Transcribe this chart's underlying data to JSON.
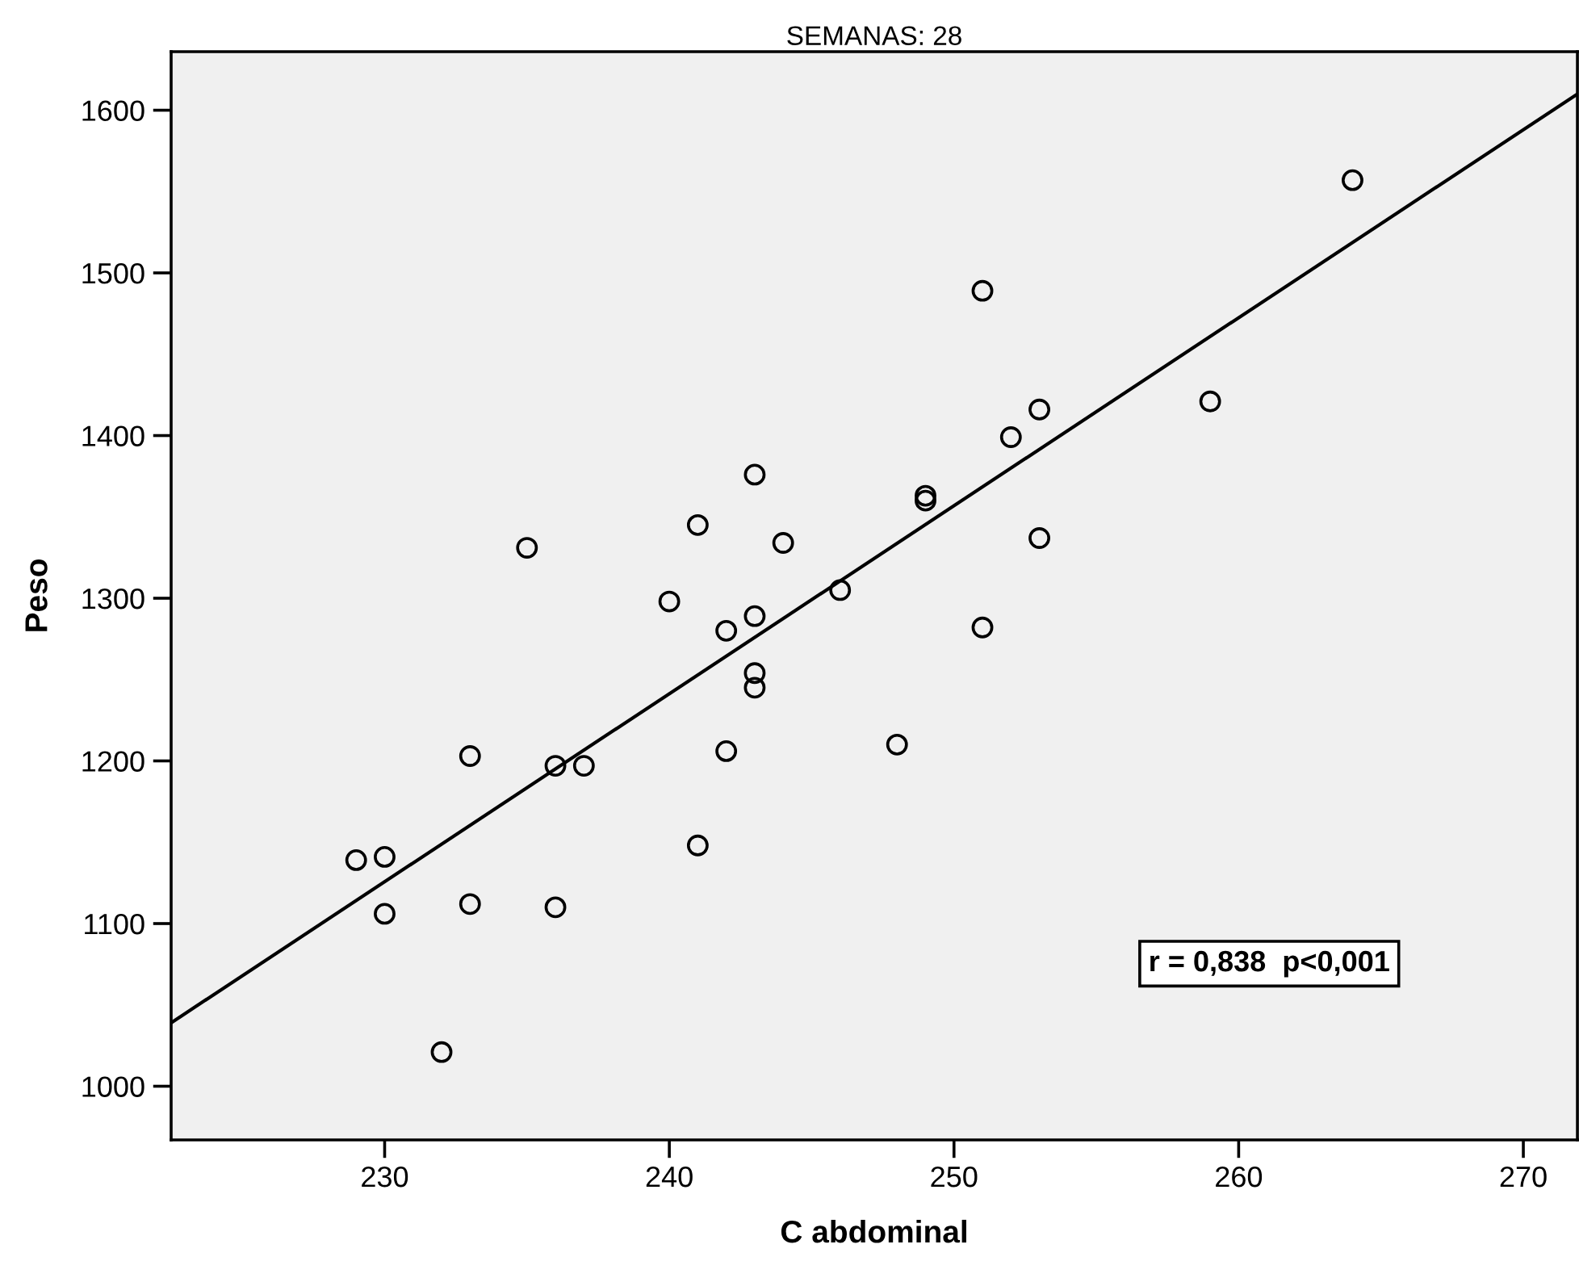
{
  "chart_data": {
    "type": "scatter",
    "title": "SEMANAS: 28",
    "xlabel": "C abdominal",
    "ylabel": "Peso",
    "x": [
      229,
      230,
      230,
      232,
      233,
      233,
      235,
      236,
      236,
      237,
      240,
      241,
      241,
      242,
      242,
      243,
      243,
      243,
      243,
      244,
      246,
      248,
      249,
      249,
      251,
      251,
      252,
      253,
      253,
      259,
      264
    ],
    "series": [
      {
        "color": "#000000",
        "marker": "circle",
        "values": [
          1139,
          1141,
          1106,
          1021,
          1203,
          1112,
          1331,
          1197,
          1110,
          1197,
          1298,
          1345,
          1148,
          1280,
          1206,
          1376,
          1289,
          1254,
          1245,
          1334,
          1305,
          1210,
          1363,
          1360,
          1489,
          1282,
          1399,
          1416,
          1337,
          1421,
          1557
        ]
      },
      {
        "type": "line",
        "color": "#000000",
        "x": [
          222.5,
          271.9
        ],
        "values": [
          1039,
          1610
        ]
      }
    ],
    "annotations": [
      "r = 0,838  p<0,001"
    ],
    "xlim": [
      222.5,
      271.9
    ],
    "ylim": [
      967,
      1636
    ],
    "xticks": [
      230,
      240,
      250,
      260,
      270
    ],
    "yticks": [
      1000,
      1100,
      1200,
      1300,
      1400,
      1500,
      1600
    ],
    "grid": false,
    "legend": false
  }
}
